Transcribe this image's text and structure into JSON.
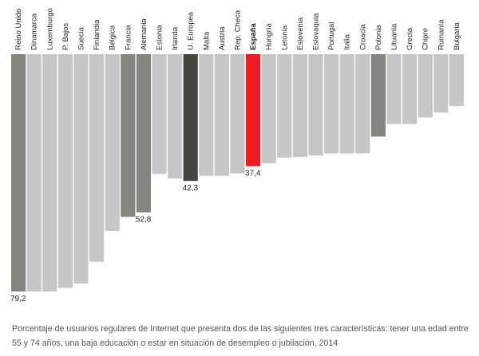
{
  "colors": {
    "bar_default": "#c6c6c4",
    "bar_highlight": "#85857f",
    "bar_eu": "#454541",
    "bar_spain": "#ed1c24"
  },
  "chart_data": {
    "type": "bar",
    "orientation": "vertical-hanging",
    "categories": [
      "Reino Unido",
      "Dinamarca",
      "Luxemburgo",
      "P. Bajos",
      "Suecia",
      "Finlandia",
      "Bélgica",
      "Francia",
      "Alemania",
      "Estonia",
      "Irlanda",
      "U. Europea",
      "Malta",
      "Austria",
      "Rep. Checa",
      "España",
      "Hungría",
      "Letonia",
      "Eslovenia",
      "Eslovaquia",
      "Portugal",
      "Italia",
      "Croacia",
      "Polonia",
      "Lituania",
      "Grecia",
      "Chipre",
      "Rumanía",
      "Bulgaria"
    ],
    "values": [
      79.2,
      79.2,
      79.2,
      78.0,
      76.5,
      69.3,
      59.0,
      54.3,
      52.8,
      40.0,
      41.5,
      42.3,
      40.6,
      40.6,
      39.8,
      37.4,
      36.4,
      34.5,
      34.3,
      33.8,
      33.1,
      33.1,
      33.1,
      27.5,
      23.3,
      23.3,
      21.1,
      19.5,
      17.3
    ],
    "styles": [
      "highlight",
      "default",
      "default",
      "default",
      "default",
      "default",
      "default",
      "highlight",
      "highlight",
      "default",
      "default",
      "eu",
      "default",
      "default",
      "default",
      "spain",
      "default",
      "default",
      "default",
      "default",
      "default",
      "default",
      "default",
      "highlight",
      "default",
      "default",
      "default",
      "default",
      "default"
    ],
    "data_labels": [
      {
        "index": 0,
        "text": "79,2"
      },
      {
        "index": 8,
        "text": "52,8"
      },
      {
        "index": 11,
        "text": "42,3"
      },
      {
        "index": 15,
        "text": "37,4"
      }
    ],
    "ylim": [
      0,
      79.2
    ],
    "caption": "Porcentaje de usuarios regulares de Internet que presenta dos de las siguientes tres características: tener una edad entre 55 y 74 años, una baja educación o estar en situación de desempleo o jubilación, 2014"
  }
}
